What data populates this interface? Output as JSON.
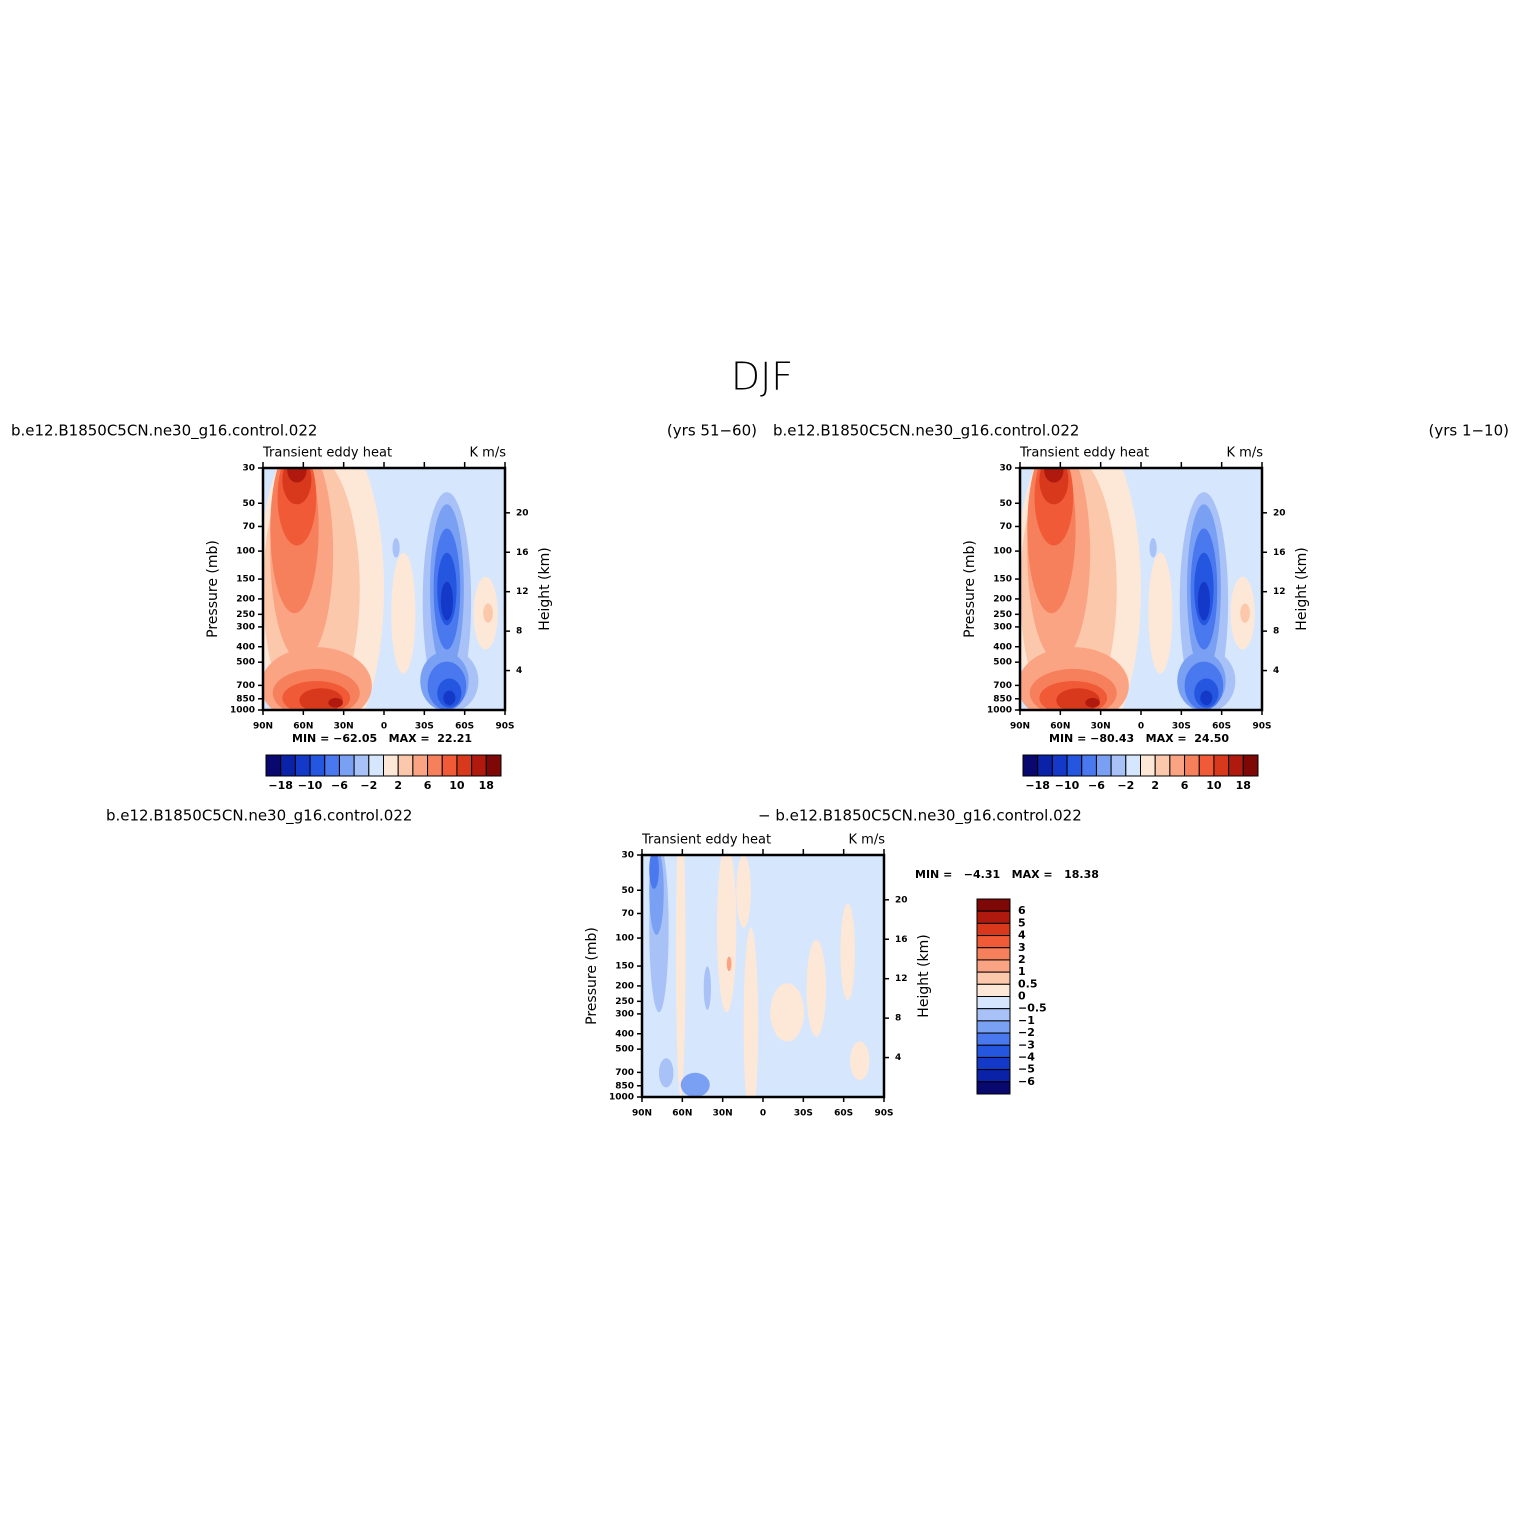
{
  "title": "DJF",
  "colors": [
    "#08086e",
    "#0a22a8",
    "#1438c8",
    "#2456e0",
    "#4a78ee",
    "#7aa0f4",
    "#a8c2f8",
    "#d6e6fc",
    "#fde8d8",
    "#fcc8ac",
    "#fba484",
    "#f7805c",
    "#f05a36",
    "#d8381c",
    "#b01a0e",
    "#7e0806"
  ],
  "axes": {
    "y_label": "Pressure (mb)",
    "y2_label": "Height (km)",
    "pressure_ticks": [
      30,
      50,
      70,
      100,
      150,
      200,
      250,
      300,
      400,
      500,
      700,
      850,
      1000
    ],
    "height_ticks": [
      20,
      16,
      12,
      8,
      4
    ],
    "lat_ticks": [
      "90N",
      "60N",
      "30N",
      "0",
      "30S",
      "60S",
      "90S"
    ]
  },
  "panels": [
    {
      "case": "b.e12.B1850C5CN.ne30_g16.control.022",
      "years": "(yrs 51−60)",
      "variable": "Transient eddy heat",
      "units": "K m/s",
      "stats": "MIN = −62.05   MAX =  22.21",
      "colorbar_labels": [
        "−18",
        "−10",
        "−6",
        "−2",
        "2",
        "6",
        "10",
        "18"
      ]
    },
    {
      "case": "b.e12.B1850C5CN.ne30_g16.control.022",
      "years": "(yrs 1−10)",
      "variable": "Transient eddy heat",
      "units": "K m/s",
      "stats": "MIN = −80.43   MAX =  24.50",
      "colorbar_labels": [
        "−18",
        "−10",
        "−6",
        "−2",
        "2",
        "6",
        "10",
        "18"
      ]
    },
    {
      "case": "b.e12.B1850C5CN.ne30_g16.control.022",
      "case2": "− b.e12.B1850C5CN.ne30_g16.control.022",
      "variable": "Transient eddy heat",
      "units": "K m/s",
      "stats": "MIN =   −4.31   MAX =   18.38",
      "colorbar_labels": [
        "6",
        "5",
        "4",
        "3",
        "2",
        "1",
        "0.5",
        "0",
        "−0.5",
        "−1",
        "−2",
        "−3",
        "−4",
        "−5",
        "−6"
      ]
    }
  ]
}
